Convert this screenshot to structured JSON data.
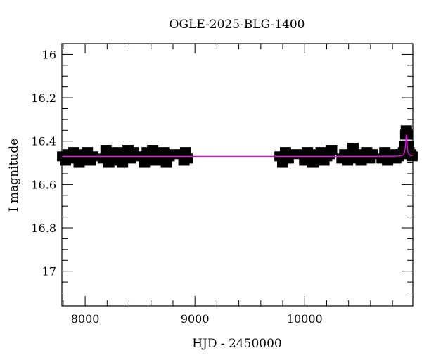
{
  "chart_data": {
    "type": "scatter",
    "title": "OGLE-2025-BLG-1400",
    "xlabel": "HJD - 2450000",
    "ylabel": "I magnitude",
    "xlim": [
      7788,
      10985
    ],
    "ylim": [
      15.95,
      17.16
    ],
    "y_inverted": true,
    "grid": false,
    "x_ticks": [
      8000,
      9000,
      10000
    ],
    "x_tick_labels": [
      "8000",
      "9000",
      "10000"
    ],
    "y_ticks": [
      16,
      16.2,
      16.4,
      16.6,
      16.8,
      17
    ],
    "y_tick_labels": [
      "16",
      "16.2",
      "16.4",
      "16.6",
      "16.8",
      "17"
    ],
    "colors": {
      "points": "#000000",
      "model": "#ff00ff"
    },
    "series": [
      {
        "type": "points_with_errorbars",
        "points": [
          [
            7795,
            16.47,
            0.015
          ],
          [
            7820,
            16.49,
            0.015
          ],
          [
            7845,
            16.46,
            0.015
          ],
          [
            7870,
            16.48,
            0.015
          ],
          [
            7895,
            16.45,
            0.015
          ],
          [
            7920,
            16.47,
            0.015
          ],
          [
            7945,
            16.5,
            0.015
          ],
          [
            7970,
            16.46,
            0.015
          ],
          [
            7995,
            16.48,
            0.015
          ],
          [
            8020,
            16.45,
            0.015
          ],
          [
            8045,
            16.49,
            0.015
          ],
          [
            8070,
            16.47,
            0.015
          ],
          [
            8165,
            16.48,
            0.015
          ],
          [
            8190,
            16.44,
            0.015
          ],
          [
            8215,
            16.5,
            0.015
          ],
          [
            8240,
            16.46,
            0.015
          ],
          [
            8265,
            16.49,
            0.015
          ],
          [
            8290,
            16.45,
            0.015
          ],
          [
            8315,
            16.47,
            0.015
          ],
          [
            8340,
            16.5,
            0.015
          ],
          [
            8365,
            16.46,
            0.015
          ],
          [
            8390,
            16.44,
            0.015
          ],
          [
            8415,
            16.48,
            0.015
          ],
          [
            8435,
            16.45,
            0.015
          ],
          [
            8515,
            16.47,
            0.015
          ],
          [
            8540,
            16.5,
            0.015
          ],
          [
            8565,
            16.45,
            0.015
          ],
          [
            8590,
            16.48,
            0.015
          ],
          [
            8615,
            16.44,
            0.015
          ],
          [
            8640,
            16.49,
            0.015
          ],
          [
            8665,
            16.46,
            0.015
          ],
          [
            8690,
            16.48,
            0.015
          ],
          [
            8715,
            16.45,
            0.015
          ],
          [
            8740,
            16.5,
            0.015
          ],
          [
            8765,
            16.47,
            0.015
          ],
          [
            8790,
            16.46,
            0.015
          ],
          [
            8885,
            16.46,
            0.015
          ],
          [
            8900,
            16.49,
            0.015
          ],
          [
            8915,
            16.45,
            0.015
          ],
          [
            8930,
            16.48,
            0.015
          ],
          [
            9775,
            16.47,
            0.015
          ],
          [
            9800,
            16.5,
            0.015
          ],
          [
            9825,
            16.45,
            0.015
          ],
          [
            9850,
            16.48,
            0.015
          ],
          [
            9875,
            16.46,
            0.015
          ],
          [
            9975,
            16.46,
            0.015
          ],
          [
            10000,
            16.49,
            0.015
          ],
          [
            10025,
            16.45,
            0.015
          ],
          [
            10050,
            16.47,
            0.015
          ],
          [
            10075,
            16.5,
            0.015
          ],
          [
            10100,
            16.46,
            0.015
          ],
          [
            10125,
            16.48,
            0.015
          ],
          [
            10150,
            16.45,
            0.015
          ],
          [
            10175,
            16.49,
            0.015
          ],
          [
            10200,
            16.47,
            0.015
          ],
          [
            10225,
            16.46,
            0.015
          ],
          [
            10245,
            16.44,
            0.015
          ],
          [
            10340,
            16.48,
            0.015
          ],
          [
            10365,
            16.46,
            0.015
          ],
          [
            10390,
            16.49,
            0.015
          ],
          [
            10415,
            16.47,
            0.015
          ],
          [
            10440,
            16.43,
            0.015
          ],
          [
            10465,
            16.48,
            0.015
          ],
          [
            10490,
            16.46,
            0.015
          ],
          [
            10515,
            16.49,
            0.015
          ],
          [
            10540,
            16.47,
            0.015
          ],
          [
            10565,
            16.45,
            0.015
          ],
          [
            10590,
            16.48,
            0.015
          ],
          [
            10615,
            16.46,
            0.015
          ],
          [
            10705,
            16.48,
            0.015
          ],
          [
            10730,
            16.45,
            0.015
          ],
          [
            10755,
            16.49,
            0.015
          ],
          [
            10780,
            16.47,
            0.015
          ],
          [
            10805,
            16.46,
            0.015
          ],
          [
            10830,
            16.48,
            0.015
          ],
          [
            10855,
            16.47,
            0.015
          ],
          [
            10880,
            16.46,
            0.015
          ],
          [
            10900,
            16.45,
            0.015
          ],
          [
            10912,
            16.42,
            0.015
          ],
          [
            10920,
            16.37,
            0.015
          ],
          [
            10926,
            16.35,
            0.015
          ],
          [
            10932,
            16.37,
            0.015
          ],
          [
            10940,
            16.42,
            0.015
          ],
          [
            10950,
            16.45,
            0.015
          ],
          [
            10965,
            16.46,
            0.015
          ],
          [
            10978,
            16.47,
            0.015
          ]
        ]
      },
      {
        "type": "model_line",
        "baseline": 16.47,
        "peak_hjd": 10926,
        "peak_mag": 16.37
      }
    ]
  }
}
